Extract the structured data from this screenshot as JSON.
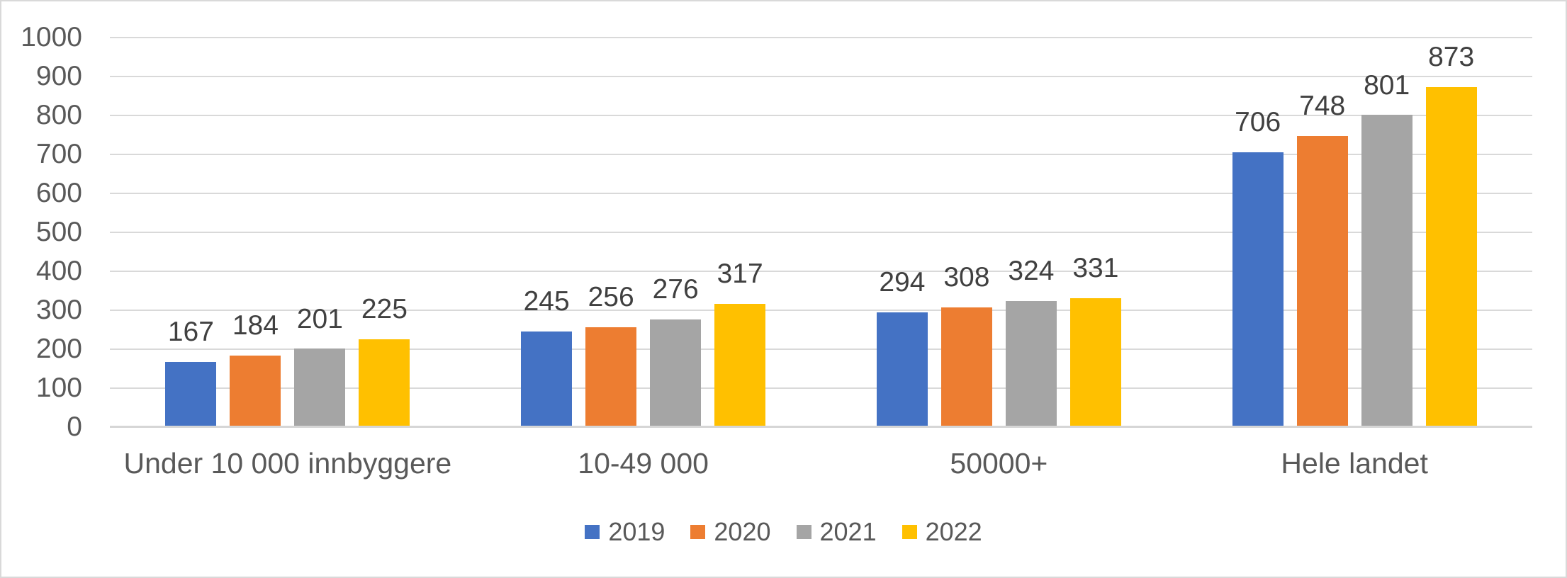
{
  "chart_data": {
    "type": "bar",
    "title": "",
    "xlabel": "",
    "ylabel": "",
    "categories": [
      "Under 10 000 innbyggere",
      "10-49 000",
      "50000+",
      "Hele landet"
    ],
    "series": [
      {
        "name": "2019",
        "color": "#4472C4",
        "values": [
          167,
          245,
          294,
          706
        ]
      },
      {
        "name": "2020",
        "color": "#ED7D31",
        "values": [
          184,
          256,
          308,
          748
        ]
      },
      {
        "name": "2021",
        "color": "#A5A5A5",
        "values": [
          201,
          276,
          324,
          801
        ]
      },
      {
        "name": "2022",
        "color": "#FFC000",
        "values": [
          225,
          317,
          331,
          873
        ]
      }
    ],
    "data_labels": {
      "Under 10 000 innbyggere": [
        167,
        184,
        201,
        225
      ],
      "10-49 000": [
        245,
        256,
        276,
        317
      ],
      "50000+": [
        294,
        308,
        324,
        331
      ],
      "Hele landet": [
        706,
        748,
        801,
        873
      ]
    },
    "y_axis": {
      "min": 0,
      "max": 1000,
      "step": 100
    },
    "y_tick_labels": [
      "0",
      "100",
      "200",
      "300",
      "400",
      "500",
      "600",
      "700",
      "800",
      "900",
      "1000"
    ],
    "grid": true,
    "legend_position": "bottom",
    "legend_entries": [
      "2019",
      "2020",
      "2021",
      "2022"
    ],
    "colors": {
      "grid_line": "#D9D9D9",
      "axis_line": "#D6D6D6",
      "axis_text": "#595959",
      "data_label_text": "#404040",
      "frame_border": "#D9D9D9",
      "background": "#FFFFFF"
    }
  }
}
